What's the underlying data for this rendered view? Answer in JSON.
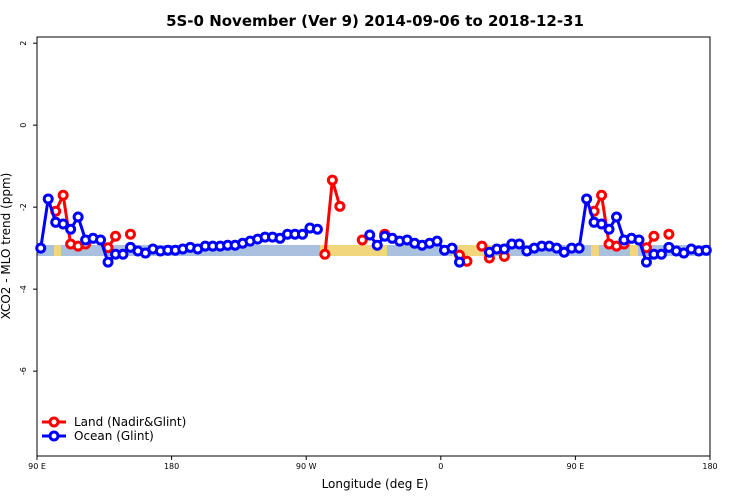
{
  "chart_data": {
    "type": "line",
    "title": "5S-0 November (Ver 9)   2014-09-06 to 2018-12-31",
    "x_label": "Longitude (deg E)",
    "y_label": "XCO2 - MLO trend (ppm)",
    "x": [
      92.5,
      97.5,
      102.5,
      107.5,
      112.5,
      117.5,
      122.5,
      127.5,
      132.5,
      137.5,
      142.5,
      147.5,
      152.5,
      157.5,
      162.5,
      167.5,
      172.5,
      177.5,
      182.5,
      187.5,
      192.5,
      197.5,
      202.5,
      207.5,
      212.5,
      217.5,
      222.5,
      227.5,
      232.5,
      237.5,
      242.5,
      247.5,
      252.5,
      257.5,
      262.5,
      267.5,
      272.5,
      277.5,
      282.5,
      287.5,
      292.5,
      297.5,
      302.5,
      307.5,
      312.5,
      317.5,
      322.5,
      327.5,
      332.5,
      337.5,
      342.5,
      347.5,
      352.5,
      357.5,
      362.5,
      367.5,
      372.5,
      377.5,
      382.5,
      387.5,
      392.5,
      397.5,
      402.5,
      407.5,
      412.5,
      417.5,
      422.5,
      427.5,
      432.5,
      437.5,
      442.5,
      447.5,
      452.5,
      457.5,
      462.5,
      467.5,
      472.5,
      477.5,
      482.5,
      487.5,
      492.5,
      497.5,
      502.5,
      507.5,
      512.5,
      517.5,
      522.5,
      527.5,
      532.5,
      537.5
    ],
    "series": [
      {
        "name": "Land (Nadir&Glint)",
        "color": "#ff0000",
        "values": [
          null,
          null,
          -2.1,
          -1.71,
          -2.9,
          -2.95,
          -2.9,
          null,
          null,
          -2.99,
          -2.71,
          null,
          -2.66,
          null,
          null,
          null,
          null,
          null,
          null,
          null,
          null,
          null,
          null,
          null,
          null,
          null,
          null,
          null,
          null,
          null,
          null,
          null,
          null,
          null,
          null,
          null,
          null,
          null,
          -3.15,
          -1.34,
          -1.98,
          null,
          null,
          -2.8,
          null,
          null,
          -2.66,
          null,
          null,
          null,
          null,
          null,
          null,
          null,
          null,
          null,
          -3.17,
          -3.32,
          null,
          -2.95,
          -3.24,
          null,
          -3.2,
          null,
          null,
          null,
          null,
          null,
          null,
          null,
          null,
          null,
          null,
          null,
          -2.1,
          -1.71,
          -2.9,
          -2.95,
          -2.9,
          null,
          null,
          -2.99,
          -2.71,
          null,
          -2.66,
          null,
          null,
          null,
          null,
          null
        ]
      },
      {
        "name": "Ocean (Glint)",
        "color": "#0000ff",
        "values": [
          -3.0,
          -1.8,
          -2.37,
          -2.41,
          -2.54,
          -2.24,
          -2.8,
          -2.76,
          -2.8,
          -3.34,
          -3.15,
          -3.15,
          -2.98,
          -3.07,
          -3.12,
          -3.02,
          -3.07,
          -3.05,
          -3.05,
          -3.02,
          -2.98,
          -3.02,
          -2.95,
          -2.95,
          -2.95,
          -2.93,
          -2.93,
          -2.88,
          -2.83,
          -2.78,
          -2.73,
          -2.73,
          -2.76,
          -2.66,
          -2.66,
          -2.66,
          -2.51,
          -2.54,
          null,
          null,
          null,
          null,
          null,
          null,
          -2.68,
          -2.93,
          -2.71,
          -2.76,
          -2.83,
          -2.8,
          -2.88,
          -2.93,
          -2.88,
          -2.83,
          -3.05,
          -3.0,
          -3.34,
          null,
          null,
          null,
          -3.1,
          -3.02,
          -3.02,
          -2.9,
          -2.9,
          -3.07,
          -3.0,
          -2.95,
          -2.95,
          -3.0,
          -3.1,
          -3.0,
          -3.0,
          -1.8,
          -2.37,
          -2.41,
          -2.54,
          -2.24,
          -2.8,
          -2.76,
          -2.8,
          -3.34,
          -3.15,
          -3.15,
          -2.98,
          -3.07,
          -3.12,
          -3.02,
          -3.07,
          -3.05
        ]
      }
    ],
    "xlim": [
      90,
      540
    ],
    "xticks": [
      {
        "value": 90,
        "label": "90 E"
      },
      180,
      {
        "value": 270,
        "label": "90 W"
      },
      {
        "value": 360,
        "label": "0"
      },
      {
        "value": 450,
        "label": "90 E"
      },
      {
        "value": 540,
        "label": "180"
      }
    ],
    "ylim": [
      -8.07,
      2.15
    ],
    "yticks": [
      2,
      0,
      -2,
      -4,
      -6
    ],
    "legend": "bottom-left"
  }
}
